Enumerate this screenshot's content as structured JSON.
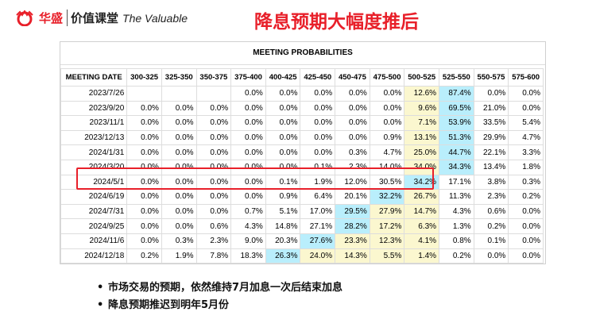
{
  "logo": {
    "brand_cn": "华盛",
    "course_cn": "价值课堂",
    "tagline": "The Valuable"
  },
  "title": "降息预期大幅度推后",
  "table": {
    "caption": "MEETING PROBABILITIES",
    "headers": [
      "MEETING DATE",
      "300-325",
      "325-350",
      "350-375",
      "375-400",
      "400-425",
      "425-450",
      "450-475",
      "475-500",
      "500-525",
      "525-550",
      "550-575",
      "575-600"
    ],
    "rows": [
      {
        "date": "2023/7/26",
        "values": [
          "",
          "",
          "",
          "0.0%",
          "0.0%",
          "0.0%",
          "0.0%",
          "0.0%",
          "12.6%",
          "87.4%",
          "0.0%",
          "0.0%"
        ],
        "hl": [
          "",
          "",
          "",
          "",
          "",
          "",
          "",
          "",
          "y",
          "c",
          "",
          ""
        ]
      },
      {
        "date": "2023/9/20",
        "values": [
          "0.0%",
          "0.0%",
          "0.0%",
          "0.0%",
          "0.0%",
          "0.0%",
          "0.0%",
          "0.0%",
          "9.6%",
          "69.5%",
          "21.0%",
          "0.0%"
        ],
        "hl": [
          "",
          "",
          "",
          "",
          "",
          "",
          "",
          "",
          "y",
          "c",
          "",
          ""
        ]
      },
      {
        "date": "2023/11/1",
        "values": [
          "0.0%",
          "0.0%",
          "0.0%",
          "0.0%",
          "0.0%",
          "0.0%",
          "0.0%",
          "0.0%",
          "7.1%",
          "53.9%",
          "33.5%",
          "5.4%"
        ],
        "hl": [
          "",
          "",
          "",
          "",
          "",
          "",
          "",
          "",
          "y",
          "c",
          "",
          ""
        ]
      },
      {
        "date": "2023/12/13",
        "values": [
          "0.0%",
          "0.0%",
          "0.0%",
          "0.0%",
          "0.0%",
          "0.0%",
          "0.0%",
          "0.9%",
          "13.1%",
          "51.3%",
          "29.9%",
          "4.7%"
        ],
        "hl": [
          "",
          "",
          "",
          "",
          "",
          "",
          "",
          "",
          "y",
          "c",
          "",
          ""
        ]
      },
      {
        "date": "2024/1/31",
        "values": [
          "0.0%",
          "0.0%",
          "0.0%",
          "0.0%",
          "0.0%",
          "0.0%",
          "0.3%",
          "4.7%",
          "25.0%",
          "44.7%",
          "22.1%",
          "3.3%"
        ],
        "hl": [
          "",
          "",
          "",
          "",
          "",
          "",
          "",
          "",
          "y",
          "c",
          "",
          ""
        ]
      },
      {
        "date": "2024/3/20",
        "values": [
          "0.0%",
          "0.0%",
          "0.0%",
          "0.0%",
          "0.0%",
          "0.1%",
          "2.3%",
          "14.0%",
          "34.0%",
          "34.3%",
          "13.4%",
          "1.8%"
        ],
        "hl": [
          "",
          "",
          "",
          "",
          "",
          "",
          "",
          "",
          "y",
          "c",
          "",
          ""
        ]
      },
      {
        "date": "2024/5/1",
        "values": [
          "0.0%",
          "0.0%",
          "0.0%",
          "0.0%",
          "0.1%",
          "1.9%",
          "12.0%",
          "30.5%",
          "34.2%",
          "17.1%",
          "3.8%",
          "0.3%"
        ],
        "hl": [
          "",
          "",
          "",
          "",
          "",
          "",
          "",
          "",
          "c",
          "",
          "",
          ""
        ]
      },
      {
        "date": "2024/6/19",
        "values": [
          "0.0%",
          "0.0%",
          "0.0%",
          "0.0%",
          "0.9%",
          "6.4%",
          "20.1%",
          "32.2%",
          "26.7%",
          "11.3%",
          "2.3%",
          "0.2%"
        ],
        "hl": [
          "",
          "",
          "",
          "",
          "",
          "",
          "",
          "c",
          "y",
          "",
          "",
          ""
        ]
      },
      {
        "date": "2024/7/31",
        "values": [
          "0.0%",
          "0.0%",
          "0.0%",
          "0.7%",
          "5.1%",
          "17.0%",
          "29.5%",
          "27.9%",
          "14.7%",
          "4.3%",
          "0.6%",
          "0.0%"
        ],
        "hl": [
          "",
          "",
          "",
          "",
          "",
          "",
          "c",
          "y",
          "y",
          "",
          "",
          ""
        ]
      },
      {
        "date": "2024/9/25",
        "values": [
          "0.0%",
          "0.0%",
          "0.6%",
          "4.3%",
          "14.8%",
          "27.1%",
          "28.2%",
          "17.2%",
          "6.3%",
          "1.3%",
          "0.2%",
          "0.0%"
        ],
        "hl": [
          "",
          "",
          "",
          "",
          "",
          "",
          "c",
          "y",
          "y",
          "",
          "",
          ""
        ]
      },
      {
        "date": "2024/11/6",
        "values": [
          "0.0%",
          "0.3%",
          "2.3%",
          "9.0%",
          "20.3%",
          "27.6%",
          "23.3%",
          "12.3%",
          "4.1%",
          "0.8%",
          "0.1%",
          "0.0%"
        ],
        "hl": [
          "",
          "",
          "",
          "",
          "",
          "c",
          "y",
          "y",
          "y",
          "",
          "",
          ""
        ]
      },
      {
        "date": "2024/12/18",
        "values": [
          "0.2%",
          "1.9%",
          "7.8%",
          "18.3%",
          "26.3%",
          "24.0%",
          "14.3%",
          "5.5%",
          "1.4%",
          "0.2%",
          "0.0%",
          "0.0%"
        ],
        "hl": [
          "",
          "",
          "",
          "",
          "c",
          "y",
          "y",
          "y",
          "y",
          "",
          "",
          ""
        ]
      }
    ]
  },
  "bullets": [
    "市场交易的预期，依然维持7月加息一次后结束加息",
    "降息预期推迟到明年5月份"
  ],
  "colors": {
    "accent": "#e8202a",
    "max": "#b9eefc",
    "second": "#fbf7cf"
  }
}
